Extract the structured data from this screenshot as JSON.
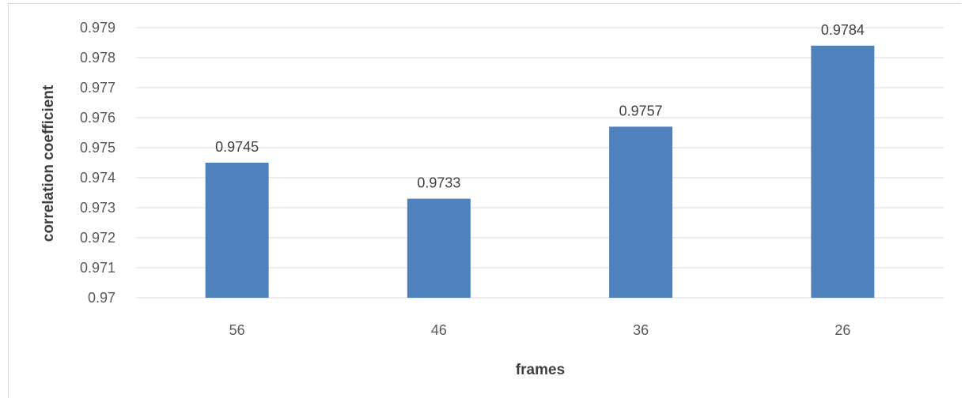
{
  "chart_data": {
    "type": "bar",
    "title": "",
    "xlabel": "frames",
    "ylabel": "correlation coefficient",
    "categories": [
      "56",
      "46",
      "36",
      "26"
    ],
    "values": [
      0.9745,
      0.9733,
      0.9757,
      0.9784
    ],
    "data_labels": [
      "0.9745",
      "0.9733",
      "0.9757",
      "0.9784"
    ],
    "ylim": [
      0.97,
      0.979
    ],
    "yticks": [
      0.97,
      0.971,
      0.972,
      0.973,
      0.974,
      0.975,
      0.976,
      0.977,
      0.978,
      0.979
    ],
    "ytick_labels": [
      "0.97",
      "0.971",
      "0.972",
      "0.973",
      "0.974",
      "0.975",
      "0.976",
      "0.977",
      "0.978",
      "0.979"
    ],
    "grid": true,
    "legend": "none",
    "bar_color": "#4f81bd",
    "grid_color": "#d9d9d9"
  }
}
